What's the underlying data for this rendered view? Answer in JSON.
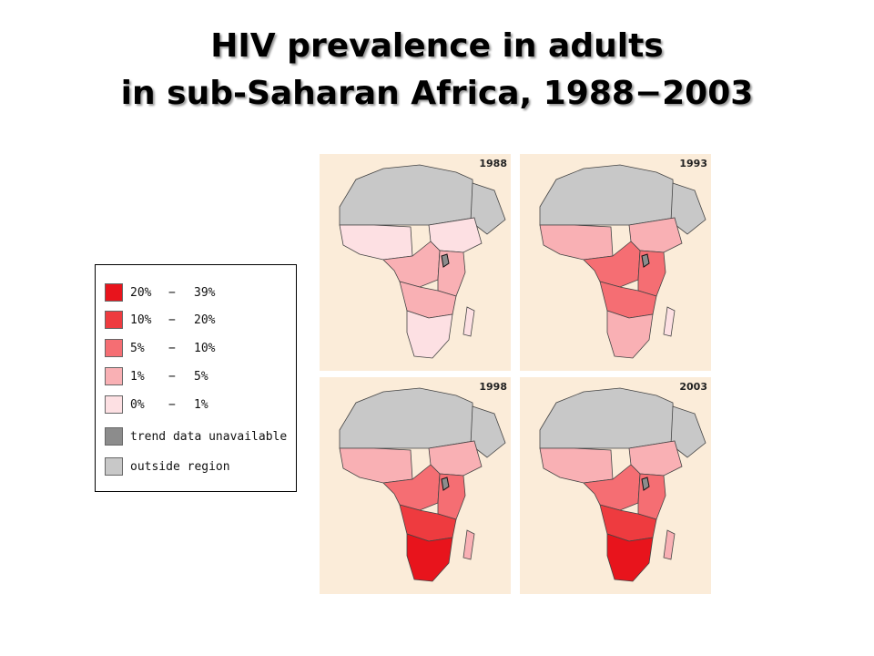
{
  "title": {
    "line1": "HIV prevalence in adults",
    "line2": "in sub-Saharan Africa, 1988−2003"
  },
  "legend": [
    {
      "low": "20%",
      "dash": "−",
      "high": "39%",
      "color": "#e8141c"
    },
    {
      "low": "10%",
      "dash": "−",
      "high": "20%",
      "color": "#ee3b3f"
    },
    {
      "low": "5%",
      "dash": "−",
      "high": "10%",
      "color": "#f56e73"
    },
    {
      "low": "1%",
      "dash": "−",
      "high": "5%",
      "color": "#f9b0b4"
    },
    {
      "low": "0%",
      "dash": "−",
      "high": "1%",
      "color": "#fde0e3"
    },
    {
      "text": "trend data unavailable",
      "color": "#8c8c8c"
    },
    {
      "text": "outside region",
      "color": "#c8c8c8"
    }
  ],
  "maps": [
    {
      "year": "1988",
      "shading": {
        "west": "#fde0e3",
        "central": "#f9b0b4",
        "east": "#f9b0b4",
        "south_central": "#f9b0b4",
        "southern": "#fde0e3",
        "horn": "#fde0e3"
      }
    },
    {
      "year": "1993",
      "shading": {
        "west": "#f9b0b4",
        "central": "#f56e73",
        "east": "#f56e73",
        "south_central": "#f56e73",
        "southern": "#f9b0b4",
        "horn": "#f9b0b4"
      }
    },
    {
      "year": "1998",
      "shading": {
        "west": "#f9b0b4",
        "central": "#f56e73",
        "east": "#f56e73",
        "south_central": "#ee3b3f",
        "southern": "#e8141c",
        "horn": "#f9b0b4"
      }
    },
    {
      "year": "2003",
      "shading": {
        "west": "#f9b0b4",
        "central": "#f56e73",
        "east": "#f56e73",
        "south_central": "#ee3b3f",
        "southern": "#e8141c",
        "horn": "#f9b0b4"
      }
    }
  ],
  "colors": {
    "outside_region": "#c8c8c8",
    "trend_unavailable": "#8c8c8c",
    "sea": "#fbecd9"
  }
}
